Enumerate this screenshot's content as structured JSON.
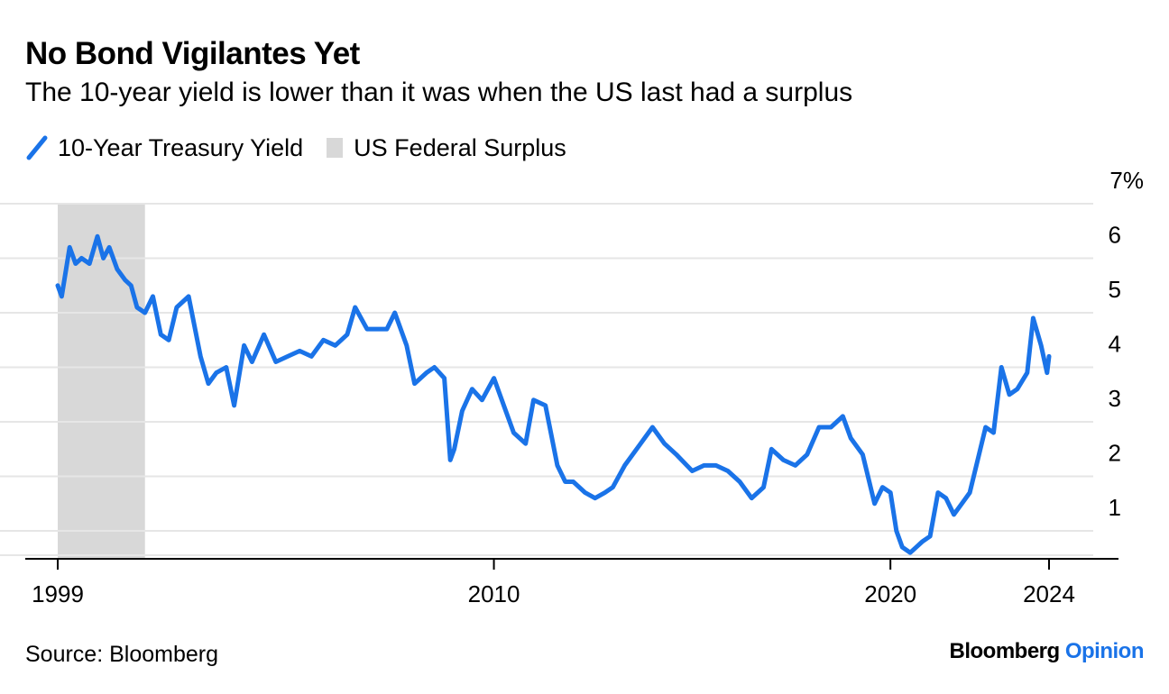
{
  "header": {
    "title": "No Bond Vigilantes Yet",
    "subtitle": "The 10-year yield is lower than it was when the US last had a surplus"
  },
  "legend": {
    "series_label": "10-Year Treasury Yield",
    "shade_label": "US Federal Surplus"
  },
  "footer": {
    "source": "Source: Bloomberg",
    "brand_main": "Bloomberg",
    "brand_accent": "Opinion"
  },
  "colors": {
    "line": "#1a73e8",
    "surplus_shade": "#d8d8d8",
    "grid": "#e6e6e6",
    "axis": "#000000"
  },
  "chart_data": {
    "type": "line",
    "title": "No Bond Vigilantes Yet",
    "subtitle": "The 10-year yield is lower than it was when the US last had a surplus",
    "x_ticks": [
      1999,
      2010,
      2020,
      2024
    ],
    "y_ticks": [
      1,
      2,
      3,
      4,
      5,
      6,
      7
    ],
    "y_unit_label": "7%",
    "xlim": [
      1999,
      2024
    ],
    "ylim": [
      0.5,
      7
    ],
    "grid": true,
    "legend_position": "top-left",
    "shaded_regions": [
      {
        "name": "US Federal Surplus",
        "x_start": 1999,
        "x_end": 2001.2
      }
    ],
    "series": [
      {
        "name": "10-Year Treasury Yield",
        "x": [
          1999.0,
          1999.1,
          1999.3,
          1999.45,
          1999.6,
          1999.8,
          2000.0,
          2000.15,
          2000.3,
          2000.5,
          2000.7,
          2000.85,
          2001.0,
          2001.2,
          2001.4,
          2001.6,
          2001.8,
          2002.0,
          2002.3,
          2002.6,
          2002.8,
          2003.0,
          2003.25,
          2003.45,
          2003.7,
          2003.9,
          2004.2,
          2004.5,
          2004.8,
          2005.1,
          2005.4,
          2005.7,
          2006.0,
          2006.3,
          2006.5,
          2006.8,
          2007.0,
          2007.3,
          2007.5,
          2007.8,
          2008.0,
          2008.3,
          2008.5,
          2008.75,
          2008.9,
          2009.0,
          2009.2,
          2009.45,
          2009.7,
          2010.0,
          2010.3,
          2010.5,
          2010.8,
          2011.0,
          2011.3,
          2011.6,
          2011.8,
          2012.0,
          2012.3,
          2012.55,
          2012.8,
          2013.0,
          2013.3,
          2013.7,
          2014.0,
          2014.3,
          2014.6,
          2015.0,
          2015.3,
          2015.6,
          2015.9,
          2016.2,
          2016.5,
          2016.8,
          2017.0,
          2017.3,
          2017.6,
          2017.9,
          2018.2,
          2018.5,
          2018.8,
          2019.0,
          2019.3,
          2019.6,
          2019.8,
          2020.0,
          2020.15,
          2020.3,
          2020.5,
          2020.8,
          2021.0,
          2021.2,
          2021.4,
          2021.6,
          2021.8,
          2022.0,
          2022.2,
          2022.4,
          2022.6,
          2022.8,
          2023.0,
          2023.2,
          2023.45,
          2023.6,
          2023.8,
          2023.95,
          2024.0
        ],
        "values": [
          5.5,
          5.3,
          6.2,
          5.9,
          6.0,
          5.9,
          6.4,
          6.0,
          6.2,
          5.8,
          5.6,
          5.5,
          5.1,
          5.0,
          5.3,
          4.6,
          4.5,
          5.1,
          5.3,
          4.2,
          3.7,
          3.9,
          4.0,
          3.3,
          4.4,
          4.1,
          4.6,
          4.1,
          4.2,
          4.3,
          4.2,
          4.5,
          4.4,
          4.6,
          5.1,
          4.7,
          4.7,
          4.7,
          5.0,
          4.4,
          3.7,
          3.9,
          4.0,
          3.8,
          2.3,
          2.5,
          3.2,
          3.6,
          3.4,
          3.8,
          3.2,
          2.8,
          2.6,
          3.4,
          3.3,
          2.2,
          1.9,
          1.9,
          1.7,
          1.6,
          1.7,
          1.8,
          2.2,
          2.6,
          2.9,
          2.6,
          2.4,
          2.1,
          2.2,
          2.2,
          2.1,
          1.9,
          1.6,
          1.8,
          2.5,
          2.3,
          2.2,
          2.4,
          2.9,
          2.9,
          3.1,
          2.7,
          2.4,
          1.5,
          1.8,
          1.7,
          1.0,
          0.7,
          0.6,
          0.8,
          0.9,
          1.7,
          1.6,
          1.3,
          1.5,
          1.7,
          2.3,
          2.9,
          2.8,
          4.0,
          3.5,
          3.6,
          3.9,
          4.9,
          4.4,
          3.9,
          4.2
        ]
      }
    ]
  }
}
